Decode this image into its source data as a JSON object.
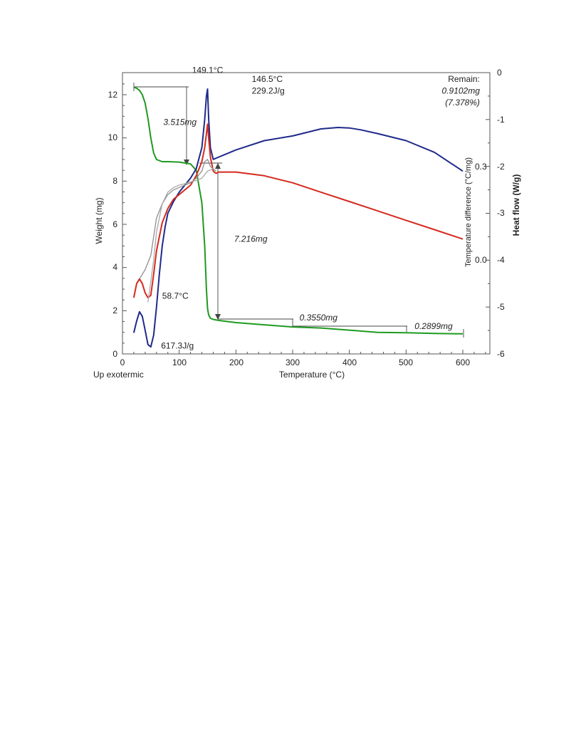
{
  "chart_data": {
    "type": "line",
    "xlabel": "Temperature (°C)",
    "xlim": [
      0,
      650
    ],
    "x_ticks": [
      "0",
      "100",
      "200",
      "300",
      "400",
      "500",
      "600"
    ],
    "ylabel_left": "Weight (mg)",
    "ylim_left": [
      0,
      13
    ],
    "y_ticks_left": [
      "0",
      "2",
      "4",
      "6",
      "8",
      "10",
      "12"
    ],
    "ylabel_right_outer": "Heat flow (W/g)",
    "ylim_right_outer": [
      -6,
      0
    ],
    "y_ticks_right_outer": [
      "-6",
      "-5",
      "-4",
      "-3",
      "-2",
      "-1",
      "0"
    ],
    "ylabel_right_inner": "Temperature difference (°C/mg)",
    "y_ticks_right_inner": [
      "0.3",
      "0.0"
    ],
    "corner_label": "Up exotermic",
    "grid": false,
    "series": [
      {
        "color": "#1f9a1f",
        "axis": "left",
        "x": [
          20,
          25,
          30,
          35,
          40,
          45,
          50,
          55,
          60,
          65,
          70,
          80,
          100,
          120,
          130,
          140,
          145,
          148,
          150,
          152,
          155,
          160,
          170,
          200,
          250,
          300,
          350,
          400,
          450,
          500,
          550,
          600
        ],
        "y": [
          12.35,
          12.3,
          12.2,
          12.0,
          11.6,
          10.9,
          10.0,
          9.3,
          9.0,
          8.95,
          8.9,
          8.9,
          8.88,
          8.8,
          8.5,
          7.0,
          5.0,
          3.0,
          2.1,
          1.8,
          1.65,
          1.6,
          1.55,
          1.45,
          1.35,
          1.25,
          1.2,
          1.1,
          1.0,
          0.98,
          0.95,
          0.93
        ]
      },
      {
        "color": "#1f2a8a",
        "axis": "right_outer",
        "x": [
          20,
          25,
          30,
          35,
          40,
          45,
          50,
          55,
          60,
          65,
          70,
          75,
          80,
          90,
          100,
          110,
          120,
          130,
          140,
          145,
          148,
          150,
          152,
          155,
          160,
          170,
          180,
          200,
          250,
          300,
          350,
          380,
          400,
          420,
          450,
          500,
          550,
          600
        ],
        "y": [
          -5.55,
          -5.3,
          -5.1,
          -5.2,
          -5.5,
          -5.8,
          -5.85,
          -5.6,
          -5.0,
          -4.3,
          -3.7,
          -3.3,
          -3.0,
          -2.75,
          -2.55,
          -2.4,
          -2.25,
          -2.05,
          -1.6,
          -1.0,
          -0.5,
          -0.35,
          -1.0,
          -1.6,
          -1.85,
          -1.8,
          -1.75,
          -1.65,
          -1.45,
          -1.35,
          -1.2,
          -1.17,
          -1.18,
          -1.22,
          -1.3,
          -1.45,
          -1.7,
          -2.1
        ]
      },
      {
        "color": "#d42a1e",
        "axis": "right_outer",
        "x": [
          20,
          25,
          30,
          35,
          40,
          45,
          50,
          55,
          60,
          70,
          80,
          90,
          100,
          110,
          120,
          130,
          140,
          145,
          148,
          150,
          152,
          155,
          160,
          165,
          170,
          200,
          250,
          300,
          350,
          400,
          450,
          500,
          550,
          600
        ],
        "y": [
          -4.8,
          -4.5,
          -4.4,
          -4.5,
          -4.7,
          -4.8,
          -4.75,
          -4.3,
          -3.8,
          -3.2,
          -2.9,
          -2.7,
          -2.6,
          -2.5,
          -2.4,
          -2.2,
          -1.9,
          -1.6,
          -1.3,
          -1.1,
          -1.4,
          -1.8,
          -2.1,
          -2.15,
          -2.12,
          -2.12,
          -2.2,
          -2.35,
          -2.55,
          -2.75,
          -2.95,
          -3.15,
          -3.35,
          -3.55
        ]
      },
      {
        "color": "#8e8e8e",
        "axis": "right_outer",
        "x": [
          30,
          40,
          50,
          60,
          70,
          80,
          90,
          100,
          110,
          120,
          130,
          140,
          145,
          150,
          155,
          160,
          165
        ],
        "y": [
          -4.4,
          -4.2,
          -3.9,
          -3.1,
          -2.8,
          -2.6,
          -2.5,
          -2.45,
          -2.4,
          -2.35,
          -2.25,
          -2.1,
          -1.9,
          -1.85,
          -2.0,
          -2.05,
          -2.1
        ]
      },
      {
        "color": "#a8a8a8",
        "axis": "right_outer",
        "x": [
          45,
          55,
          60,
          70,
          80,
          90,
          100,
          110,
          120,
          130,
          140,
          150,
          160
        ],
        "y": [
          -4.9,
          -4.0,
          -3.4,
          -2.8,
          -2.55,
          -2.45,
          -2.4,
          -2.37,
          -2.33,
          -2.3,
          -2.25,
          -2.1,
          -2.05
        ]
      }
    ],
    "annotations": [
      {
        "text": "149.1°C",
        "x": 150,
        "y": 13.0,
        "italic": false,
        "anchor": "middle"
      },
      {
        "text": "146.5°C",
        "x": 228,
        "y": 12.6,
        "italic": false,
        "anchor": "start"
      },
      {
        "text": "229.2J/g",
        "x": 228,
        "y": 12.05,
        "italic": false,
        "anchor": "start"
      },
      {
        "text": "Remain:",
        "x": 630,
        "y": 12.6,
        "italic": false,
        "anchor": "end"
      },
      {
        "text": "0.9102mg",
        "x": 630,
        "y": 12.05,
        "italic": true,
        "anchor": "end"
      },
      {
        "text": "(7.378%)",
        "x": 630,
        "y": 11.5,
        "italic": true,
        "anchor": "end"
      },
      {
        "text": "3.515mg",
        "x": 72,
        "y": 10.6,
        "italic": true,
        "anchor": "start"
      },
      {
        "text": "7.216mg",
        "x": 197,
        "y": 5.2,
        "italic": true,
        "anchor": "start"
      },
      {
        "text": "58.7°C",
        "x": 70,
        "y": 2.55,
        "italic": false,
        "anchor": "start"
      },
      {
        "text": "617.3J/g",
        "x": 68,
        "y": 0.25,
        "italic": false,
        "anchor": "start"
      },
      {
        "text": "0.3550mg",
        "x": 312,
        "y": 1.55,
        "italic": true,
        "anchor": "start"
      },
      {
        "text": "0.2899mg",
        "x": 515,
        "y": 1.15,
        "italic": true,
        "anchor": "start"
      }
    ]
  }
}
